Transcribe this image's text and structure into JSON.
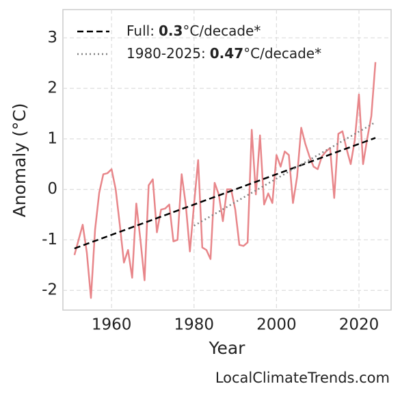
{
  "chart_data": {
    "type": "line",
    "x_label": "Year",
    "y_label": "Anomaly (°C)",
    "credit": "LocalClimateTrends.com",
    "x": [
      1951,
      1952,
      1953,
      1954,
      1955,
      1956,
      1957,
      1958,
      1959,
      1960,
      1961,
      1962,
      1963,
      1964,
      1965,
      1966,
      1967,
      1968,
      1969,
      1970,
      1971,
      1972,
      1973,
      1974,
      1975,
      1976,
      1977,
      1978,
      1979,
      1980,
      1981,
      1982,
      1983,
      1984,
      1985,
      1986,
      1987,
      1988,
      1989,
      1990,
      1991,
      1992,
      1993,
      1994,
      1995,
      1996,
      1997,
      1998,
      1999,
      2000,
      2001,
      2002,
      2003,
      2004,
      2005,
      2006,
      2007,
      2008,
      2009,
      2010,
      2011,
      2012,
      2013,
      2014,
      2015,
      2016,
      2017,
      2018,
      2019,
      2020,
      2021,
      2022,
      2023,
      2024
    ],
    "values": [
      -1.3,
      -1.0,
      -0.7,
      -1.25,
      -2.15,
      -0.8,
      -0.07,
      0.3,
      0.32,
      0.4,
      0.0,
      -0.7,
      -1.45,
      -1.2,
      -1.75,
      -0.28,
      -1.0,
      -1.8,
      0.08,
      0.2,
      -0.85,
      -0.4,
      -0.38,
      -0.3,
      -1.03,
      -1.0,
      0.3,
      -0.3,
      -1.23,
      -0.3,
      0.58,
      -1.15,
      -1.2,
      -1.38,
      0.13,
      -0.1,
      -0.63,
      0.0,
      0.0,
      -0.4,
      -1.1,
      -1.12,
      -1.05,
      1.18,
      -0.1,
      1.07,
      -0.3,
      -0.08,
      -0.27,
      0.68,
      0.45,
      0.75,
      0.68,
      -0.27,
      0.25,
      1.22,
      0.9,
      0.65,
      0.45,
      0.4,
      0.65,
      0.75,
      0.82,
      -0.17,
      1.1,
      1.15,
      0.8,
      0.5,
      0.98,
      1.88,
      0.5,
      1.0,
      1.45,
      2.52
    ],
    "color": "#e8868a",
    "trends": [
      {
        "name": "Full:",
        "rate": 0.3,
        "unit": "°C/decade*",
        "x": [
          1951,
          2024
        ],
        "values": [
          -1.17,
          1.02
        ],
        "color": "#000000",
        "dash": "dashed"
      },
      {
        "name": "1980-2025:",
        "rate": 0.47,
        "unit": "°C/decade*",
        "x": [
          1980,
          2024
        ],
        "values": [
          -0.72,
          1.33
        ],
        "color": "#808080",
        "dash": "dotted"
      }
    ],
    "xlim": [
      1948.2,
      2027.8
    ],
    "xticks": [
      1960,
      1980,
      2000,
      2020
    ],
    "ylim": [
      -2.39,
      3.56
    ],
    "yticks": [
      -2,
      -1,
      0,
      1,
      2,
      3
    ],
    "grid": true,
    "legend": "upper left"
  }
}
